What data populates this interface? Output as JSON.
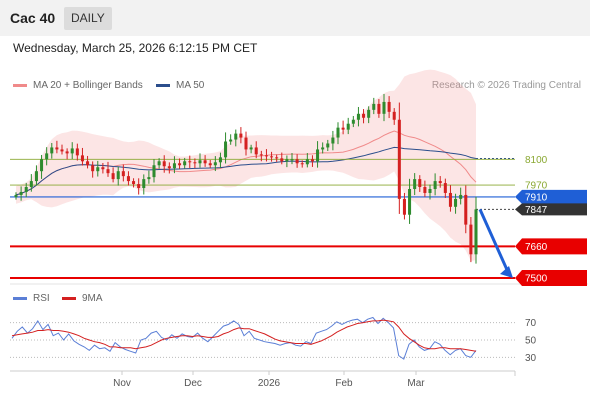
{
  "header": {
    "title": "Cac 40",
    "timeframe": "DAILY"
  },
  "datetime": "Wednesday, March 25, 2026 6:12:15 PM CET",
  "credit": "Research © 2026 Trading Central",
  "colors": {
    "bollinger": "#f08a8a",
    "ma50": "#2b4e8c",
    "bull": "#2e8b2e",
    "bear": "#d42020",
    "resistance": "#8aa832",
    "blue_level": "#1f5fd6",
    "support": "#e80000",
    "rsi": "#5b7fd6",
    "rsi_ma": "#d42020"
  },
  "chart_data": [
    {
      "type": "candlestick",
      "legend": [
        {
          "name": "MA 20 + Bollinger Bands",
          "color": "#f08a8a"
        },
        {
          "name": "MA 50",
          "color": "#2b4e8c"
        }
      ],
      "x_ticks": [
        "Nov",
        "Dec",
        "2026",
        "Feb",
        "Mar"
      ],
      "ylim": [
        7480,
        8420
      ],
      "levels": [
        {
          "value": "8100",
          "role": "resistance",
          "color": "#8aa832"
        },
        {
          "value": "7970",
          "role": "resistance",
          "color": "#8aa832"
        },
        {
          "value": "7910",
          "role": "pivot",
          "color": "#1f5fd6"
        },
        {
          "value": "7847",
          "role": "last",
          "color": "#333333"
        },
        {
          "value": "7660",
          "role": "support",
          "color": "#e80000"
        },
        {
          "value": "7500",
          "role": "support",
          "color": "#e80000"
        }
      ],
      "close": [
        7920,
        7935,
        7960,
        7990,
        8040,
        8100,
        8130,
        8160,
        8150,
        8140,
        8130,
        8155,
        8120,
        8090,
        8070,
        8040,
        8060,
        8050,
        8030,
        8000,
        8040,
        8015,
        7990,
        7975,
        7955,
        8000,
        8010,
        8070,
        8090,
        8065,
        8055,
        8080,
        8070,
        8090,
        8085,
        8080,
        8095,
        8080,
        8070,
        8085,
        8110,
        8190,
        8200,
        8230,
        8210,
        8150,
        8160,
        8125,
        8120,
        8115,
        8110,
        8105,
        8090,
        8100,
        8100,
        8080,
        8075,
        8100,
        8090,
        8150,
        8160,
        8180,
        8210,
        8260,
        8250,
        8280,
        8300,
        8330,
        8310,
        8350,
        8380,
        8330,
        8390,
        8340,
        8300,
        7900,
        7820,
        7950,
        8000,
        7960,
        7930,
        7950,
        7990,
        7980,
        7930,
        7860,
        7900,
        7920,
        7770,
        7620,
        7847
      ],
      "forecast": {
        "from": 7847,
        "to": 7500
      }
    },
    {
      "type": "line",
      "title": "RSI",
      "legend": [
        {
          "name": "RSI",
          "color": "#5b7fd6"
        },
        {
          "name": "9MA",
          "color": "#d42020"
        }
      ],
      "y_ticks": [
        "70",
        "50",
        "30"
      ],
      "ylim": [
        20,
        80
      ],
      "series": [
        {
          "name": "RSI",
          "values": [
            52,
            60,
            65,
            58,
            63,
            72,
            62,
            68,
            55,
            58,
            50,
            57,
            49,
            45,
            42,
            38,
            44,
            40,
            41,
            37,
            47,
            42,
            39,
            37,
            35,
            50,
            52,
            58,
            60,
            53,
            50,
            56,
            52,
            57,
            54,
            53,
            58,
            52,
            48,
            54,
            60,
            66,
            68,
            72,
            68,
            55,
            60,
            52,
            50,
            48,
            47,
            46,
            44,
            46,
            47,
            44,
            43,
            48,
            46,
            58,
            60,
            62,
            66,
            71,
            68,
            71,
            73,
            74,
            70,
            74,
            76,
            69,
            75,
            70,
            64,
            32,
            28,
            45,
            50,
            42,
            38,
            40,
            48,
            45,
            38,
            33,
            38,
            40,
            32,
            30,
            38
          ]
        },
        {
          "name": "9MA",
          "values": [
            55,
            56,
            57,
            58,
            59,
            61,
            61,
            62,
            61,
            61,
            60,
            59,
            57,
            55,
            52,
            50,
            48,
            47,
            45,
            42,
            42,
            41,
            41,
            41,
            40,
            41,
            42,
            44,
            47,
            50,
            52,
            53,
            54,
            55,
            55,
            54,
            55,
            54,
            53,
            53,
            54,
            57,
            59,
            62,
            64,
            63,
            63,
            61,
            59,
            57,
            54,
            51,
            49,
            48,
            47,
            46,
            46,
            46,
            45,
            47,
            49,
            52,
            55,
            59,
            62,
            65,
            67,
            69,
            70,
            71,
            72,
            72,
            73,
            72,
            71,
            65,
            57,
            52,
            48,
            44,
            41,
            40,
            40,
            41,
            41,
            40,
            40,
            40,
            39,
            38,
            37
          ]
        }
      ]
    }
  ]
}
